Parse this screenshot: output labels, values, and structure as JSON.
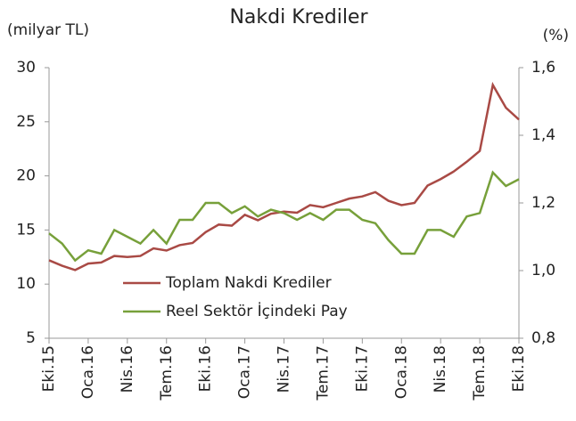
{
  "chart_data": {
    "type": "line",
    "title": "Nakdi Krediler",
    "y_label": "(milyar TL)",
    "y2_label": "(%)",
    "categories": [
      "Eki.15",
      null,
      null,
      "Oca.16",
      null,
      null,
      "Nis.16",
      null,
      null,
      "Tem.16",
      null,
      null,
      "Eki.16",
      null,
      null,
      "Oca.17",
      null,
      null,
      "Nis.17",
      null,
      null,
      "Tem.17",
      null,
      null,
      "Eki.17",
      null,
      null,
      "Oca.18",
      null,
      null,
      "Nis.18",
      null,
      null,
      "Tem.18",
      null,
      null,
      "Eki.18"
    ],
    "series": [
      {
        "name": "Toplam Nakdi Krediler",
        "color": "#a94a45",
        "axis": "y",
        "values": [
          12.2,
          11.7,
          11.3,
          11.9,
          12.0,
          12.6,
          12.5,
          12.6,
          13.3,
          13.1,
          13.6,
          13.8,
          14.8,
          15.5,
          15.4,
          16.4,
          15.9,
          16.5,
          16.7,
          16.6,
          17.3,
          17.1,
          17.5,
          17.9,
          18.1,
          18.5,
          17.7,
          17.3,
          17.5,
          19.1,
          19.7,
          20.4,
          21.3,
          22.3,
          28.4,
          26.3,
          25.2
        ]
      },
      {
        "name": "Reel Sektör İçindeki Pay",
        "color": "#77a03a",
        "axis": "y2",
        "values": [
          1.11,
          1.08,
          1.03,
          1.06,
          1.05,
          1.12,
          1.1,
          1.08,
          1.12,
          1.08,
          1.15,
          1.15,
          1.2,
          1.2,
          1.17,
          1.19,
          1.16,
          1.18,
          1.17,
          1.15,
          1.17,
          1.15,
          1.18,
          1.18,
          1.15,
          1.14,
          1.09,
          1.05,
          1.05,
          1.12,
          1.12,
          1.1,
          1.16,
          1.17,
          1.29,
          1.25,
          1.27
        ]
      }
    ],
    "ylim": [
      5,
      30
    ],
    "yticks": [
      5,
      10,
      15,
      20,
      25,
      30
    ],
    "y2lim": [
      0.8,
      1.6
    ],
    "y2ticks": [
      {
        "value": 0.8,
        "label": "0,8"
      },
      {
        "value": 1.0,
        "label": "1,0"
      },
      {
        "value": 1.2,
        "label": "1,2"
      },
      {
        "value": 1.4,
        "label": "1,4"
      },
      {
        "value": 1.6,
        "label": "1,6"
      }
    ]
  }
}
